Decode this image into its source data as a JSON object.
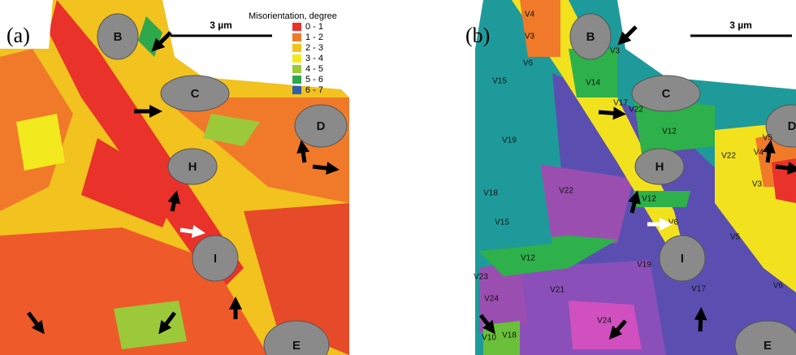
{
  "panels": [
    {
      "label": "(a)",
      "scale_bar": "3 µm",
      "legend": {
        "title": "Misorientation, degree",
        "items": [
          {
            "label": "0  -  1",
            "color": "#e8322a"
          },
          {
            "label": "1  -  2",
            "color": "#f07a2a"
          },
          {
            "label": "2  -  3",
            "color": "#f4c21c"
          },
          {
            "label": "3  -  4",
            "color": "#f2ea1e"
          },
          {
            "label": "4  -  5",
            "color": "#9cc93a"
          },
          {
            "label": "5  -  6",
            "color": "#2ea84a"
          },
          {
            "label": "6  -  7",
            "color": "#2b5fb0"
          }
        ]
      },
      "particles": [
        "B",
        "C",
        "D",
        "H",
        "I",
        "E"
      ]
    },
    {
      "label": "(b)",
      "scale_bar": "3 µm",
      "particles": [
        "B",
        "C",
        "D",
        "H",
        "I",
        "E"
      ],
      "variants": [
        "V4",
        "V3",
        "V3",
        "V6",
        "V15",
        "V14",
        "V17",
        "V22",
        "V12",
        "V5",
        "V4",
        "V19",
        "V18",
        "V22",
        "V22",
        "V12",
        "V3",
        "V6",
        "V15",
        "V5",
        "V12",
        "V19",
        "V23",
        "V21",
        "V17",
        "V6",
        "V24",
        "V24",
        "V10",
        "V18"
      ]
    }
  ]
}
